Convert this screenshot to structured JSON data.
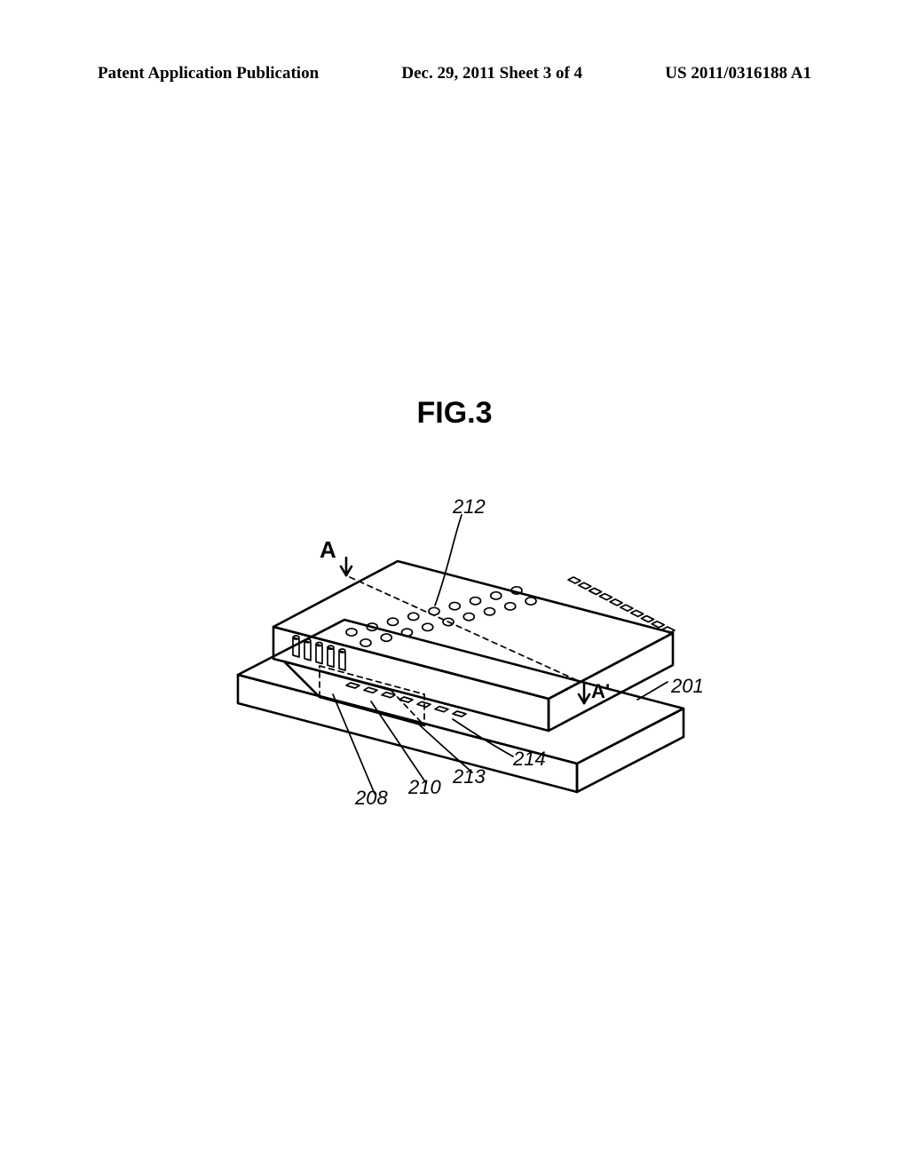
{
  "header": {
    "left": "Patent Application Publication",
    "center": "Dec. 29, 2011  Sheet 3 of 4",
    "right": "US 2011/0316188 A1"
  },
  "figure": {
    "title": "FIG.3",
    "labels": {
      "A": "A",
      "Aprime": "A'",
      "n212": "212",
      "n201": "201",
      "n214": "214",
      "n213": "213",
      "n210": "210",
      "n208": "208"
    },
    "style": {
      "stroke": "#000000",
      "stroke_width": 2.6,
      "stroke_width_thin": 1.7,
      "dash": "6 5",
      "background": "#ffffff",
      "label_fontsize_ref": 22,
      "label_fontsize_section": 26,
      "label_fontsize_section_small": 22
    }
  }
}
